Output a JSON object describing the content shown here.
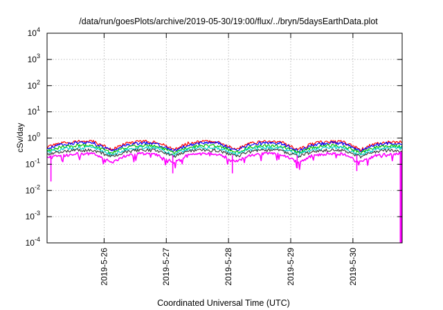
{
  "chart_data": {
    "type": "line",
    "title": "/data/run/goesPlots/archive/2019-05-30/19:00/flux/../bryn/5daysEarthData.plot",
    "xlabel": "Coordinated Universal Time (UTC)",
    "ylabel": "cSv/day",
    "yscale": "log",
    "ylim": [
      0.0001,
      10000
    ],
    "xlim": [
      "2019-05-25T02:00",
      "2019-05-30T19:00"
    ],
    "grid": true,
    "legend": "none",
    "y_ticks": [
      {
        "exp": "-4",
        "value": 0.0001
      },
      {
        "exp": "-3",
        "value": 0.001
      },
      {
        "exp": "-2",
        "value": 0.01
      },
      {
        "exp": "-1",
        "value": 0.1
      },
      {
        "exp": "0",
        "value": 1
      },
      {
        "exp": "1",
        "value": 10
      },
      {
        "exp": "2",
        "value": 100
      },
      {
        "exp": "3",
        "value": 1000
      },
      {
        "exp": "4",
        "value": 10000
      }
    ],
    "x_ticks": [
      "2019-5-26",
      "2019-5-27",
      "2019-5-28",
      "2019-5-29",
      "2019-5-30"
    ],
    "x_tick_times": [
      "2019-05-26T00:00",
      "2019-05-27T00:00",
      "2019-05-28T00:00",
      "2019-05-29T00:00",
      "2019-05-30T00:00"
    ],
    "series": [
      {
        "color": "#ff0000",
        "x": [
          "2019-05-25T02:00",
          "2019-05-25T08:00",
          "2019-05-25T14:00",
          "2019-05-25T20:00",
          "2019-05-26T03:00",
          "2019-05-26T08:00",
          "2019-05-26T14:00",
          "2019-05-26T20:00",
          "2019-05-27T03:00",
          "2019-05-27T08:00",
          "2019-05-27T14:00",
          "2019-05-27T20:00",
          "2019-05-28T03:00",
          "2019-05-28T08:00",
          "2019-05-28T14:00",
          "2019-05-28T20:00",
          "2019-05-29T03:00",
          "2019-05-29T08:00",
          "2019-05-29T14:00",
          "2019-05-29T20:00",
          "2019-05-30T03:00",
          "2019-05-30T08:00",
          "2019-05-30T14:00",
          "2019-05-30T19:00"
        ],
        "y": [
          0.45,
          0.65,
          0.75,
          0.72,
          0.36,
          0.6,
          0.75,
          0.72,
          0.36,
          0.62,
          0.75,
          0.72,
          0.37,
          0.62,
          0.75,
          0.72,
          0.36,
          0.6,
          0.75,
          0.72,
          0.36,
          0.6,
          0.72,
          0.7
        ]
      },
      {
        "color": "#0000ff",
        "x": [
          "2019-05-25T02:00",
          "2019-05-25T08:00",
          "2019-05-25T14:00",
          "2019-05-25T20:00",
          "2019-05-26T03:00",
          "2019-05-26T08:00",
          "2019-05-26T14:00",
          "2019-05-26T20:00",
          "2019-05-27T03:00",
          "2019-05-27T08:00",
          "2019-05-27T14:00",
          "2019-05-27T20:00",
          "2019-05-28T03:00",
          "2019-05-28T08:00",
          "2019-05-28T14:00",
          "2019-05-28T20:00",
          "2019-05-29T03:00",
          "2019-05-29T08:00",
          "2019-05-29T14:00",
          "2019-05-29T20:00",
          "2019-05-30T03:00",
          "2019-05-30T08:00",
          "2019-05-30T14:00",
          "2019-05-30T19:00"
        ],
        "y": [
          0.4,
          0.58,
          0.66,
          0.64,
          0.32,
          0.53,
          0.66,
          0.64,
          0.32,
          0.55,
          0.66,
          0.64,
          0.33,
          0.55,
          0.66,
          0.64,
          0.32,
          0.53,
          0.66,
          0.64,
          0.32,
          0.53,
          0.64,
          0.62
        ]
      },
      {
        "color": "#00c000",
        "x": [
          "2019-05-25T02:00",
          "2019-05-25T08:00",
          "2019-05-25T14:00",
          "2019-05-25T20:00",
          "2019-05-26T03:00",
          "2019-05-26T08:00",
          "2019-05-26T14:00",
          "2019-05-26T20:00",
          "2019-05-27T03:00",
          "2019-05-27T08:00",
          "2019-05-27T14:00",
          "2019-05-27T20:00",
          "2019-05-28T03:00",
          "2019-05-28T08:00",
          "2019-05-28T14:00",
          "2019-05-28T20:00",
          "2019-05-29T03:00",
          "2019-05-29T08:00",
          "2019-05-29T14:00",
          "2019-05-29T20:00",
          "2019-05-30T03:00",
          "2019-05-30T08:00",
          "2019-05-30T14:00",
          "2019-05-30T19:00"
        ],
        "y": [
          0.33,
          0.46,
          0.52,
          0.5,
          0.27,
          0.43,
          0.52,
          0.5,
          0.27,
          0.44,
          0.52,
          0.5,
          0.28,
          0.44,
          0.52,
          0.5,
          0.27,
          0.43,
          0.52,
          0.5,
          0.27,
          0.43,
          0.5,
          0.49
        ]
      },
      {
        "color": "#00d0d0",
        "x": [
          "2019-05-25T02:00",
          "2019-05-25T08:00",
          "2019-05-25T14:00",
          "2019-05-25T20:00",
          "2019-05-26T03:00",
          "2019-05-26T08:00",
          "2019-05-26T14:00",
          "2019-05-26T20:00",
          "2019-05-27T03:00",
          "2019-05-27T08:00",
          "2019-05-27T14:00",
          "2019-05-27T20:00",
          "2019-05-28T03:00",
          "2019-05-28T08:00",
          "2019-05-28T14:00",
          "2019-05-28T20:00",
          "2019-05-29T03:00",
          "2019-05-29T08:00",
          "2019-05-29T14:00",
          "2019-05-29T20:00",
          "2019-05-30T03:00",
          "2019-05-30T08:00",
          "2019-05-30T14:00",
          "2019-05-30T19:00"
        ],
        "y": [
          0.28,
          0.38,
          0.43,
          0.42,
          0.23,
          0.36,
          0.43,
          0.42,
          0.23,
          0.37,
          0.43,
          0.42,
          0.24,
          0.37,
          0.43,
          0.42,
          0.23,
          0.36,
          0.43,
          0.42,
          0.23,
          0.36,
          0.42,
          0.41
        ]
      },
      {
        "color": "#404040",
        "x": [
          "2019-05-25T02:00",
          "2019-05-25T08:00",
          "2019-05-25T14:00",
          "2019-05-25T20:00",
          "2019-05-26T03:00",
          "2019-05-26T08:00",
          "2019-05-26T14:00",
          "2019-05-26T20:00",
          "2019-05-27T03:00",
          "2019-05-27T08:00",
          "2019-05-27T14:00",
          "2019-05-27T20:00",
          "2019-05-28T03:00",
          "2019-05-28T08:00",
          "2019-05-28T14:00",
          "2019-05-28T20:00",
          "2019-05-29T03:00",
          "2019-05-29T08:00",
          "2019-05-29T14:00",
          "2019-05-29T20:00",
          "2019-05-30T03:00",
          "2019-05-30T08:00",
          "2019-05-30T14:00",
          "2019-05-30T19:00"
        ],
        "y": [
          0.24,
          0.31,
          0.35,
          0.34,
          0.2,
          0.3,
          0.35,
          0.34,
          0.2,
          0.3,
          0.35,
          0.34,
          0.2,
          0.3,
          0.35,
          0.34,
          0.2,
          0.3,
          0.35,
          0.34,
          0.2,
          0.3,
          0.34,
          0.33
        ]
      },
      {
        "color": "#ff00ff",
        "x": [
          "2019-05-25T02:00",
          "2019-05-25T08:00",
          "2019-05-25T14:00",
          "2019-05-25T20:00",
          "2019-05-26T03:00",
          "2019-05-26T08:00",
          "2019-05-26T14:00",
          "2019-05-26T20:00",
          "2019-05-27T03:00",
          "2019-05-27T08:00",
          "2019-05-27T14:00",
          "2019-05-27T20:00",
          "2019-05-28T03:00",
          "2019-05-28T08:00",
          "2019-05-28T14:00",
          "2019-05-28T20:00",
          "2019-05-29T03:00",
          "2019-05-29T08:00",
          "2019-05-29T14:00",
          "2019-05-29T20:00",
          "2019-05-30T03:00",
          "2019-05-30T08:00",
          "2019-05-30T14:00",
          "2019-05-30T19:00"
        ],
        "y": [
          0.18,
          0.22,
          0.26,
          0.25,
          0.12,
          0.21,
          0.26,
          0.25,
          0.12,
          0.22,
          0.26,
          0.25,
          0.13,
          0.22,
          0.26,
          0.25,
          0.12,
          0.21,
          0.26,
          0.25,
          0.12,
          0.21,
          0.25,
          0.25
        ]
      }
    ],
    "dips": [
      {
        "x": "2019-05-25T03:30",
        "y": 0.022
      },
      {
        "x": "2019-05-27T02:30",
        "y": 0.045
      },
      {
        "x": "2019-05-28T01:30",
        "y": 0.045
      },
      {
        "x": "2019-05-29T02:30",
        "y": 0.07
      },
      {
        "x": "2019-05-30T01:30",
        "y": 0.055
      }
    ],
    "dropout": {
      "x": "2019-05-30T18:20",
      "y": 0.0001
    }
  }
}
